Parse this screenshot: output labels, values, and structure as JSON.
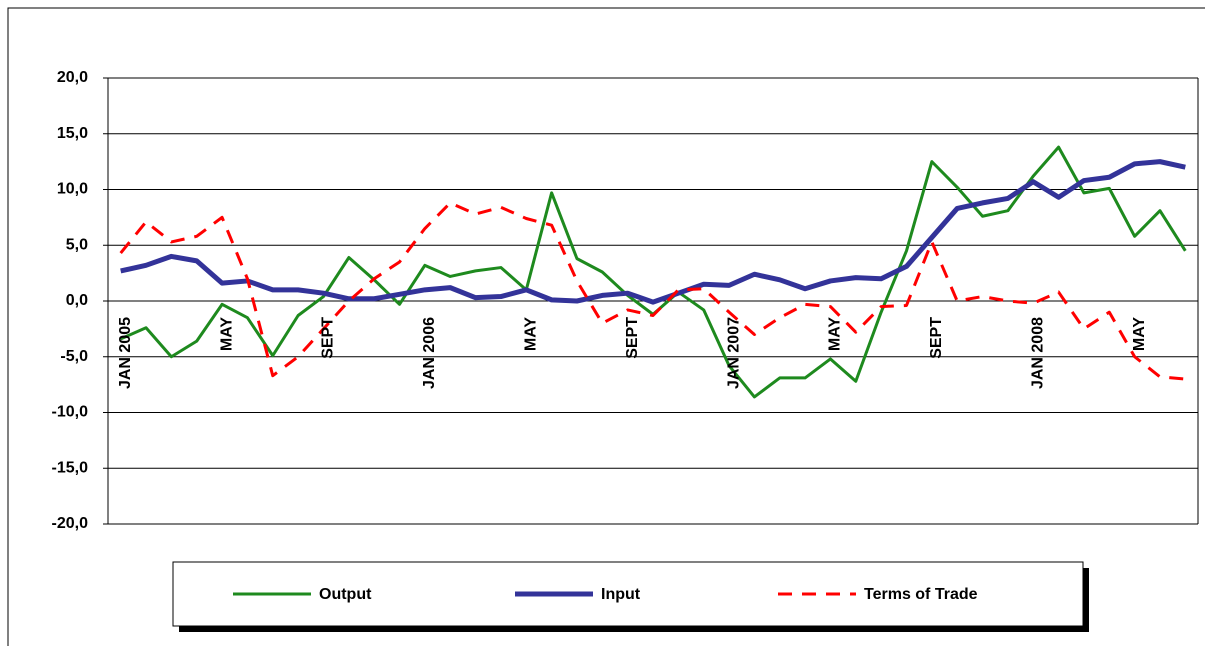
{
  "chart_data": {
    "type": "line",
    "categories": [
      "JAN 2005",
      null,
      null,
      null,
      "MAY",
      null,
      null,
      null,
      "SEPT",
      null,
      null,
      null,
      "JAN 2006",
      null,
      null,
      null,
      "MAY",
      null,
      null,
      null,
      "SEPT",
      null,
      null,
      null,
      "JAN 2007",
      null,
      null,
      null,
      "MAY",
      null,
      null,
      null,
      "SEPT",
      null,
      null,
      null,
      "JAN 2008",
      null,
      null,
      null,
      "MAY",
      null,
      null
    ],
    "series": [
      {
        "name": "Output",
        "color": "#1e8a1e",
        "dash": false,
        "width": 3,
        "values": [
          -3.4,
          -2.4,
          -5.0,
          -3.6,
          -0.3,
          -1.5,
          -4.9,
          -1.3,
          0.4,
          3.9,
          1.9,
          -0.3,
          3.2,
          2.2,
          2.7,
          3.0,
          1.0,
          9.7,
          3.8,
          2.6,
          0.5,
          -1.2,
          0.8,
          -0.8,
          -5.8,
          -8.6,
          -6.9,
          -6.9,
          -5.2,
          -7.2,
          -1.0,
          4.5,
          12.5,
          10.2,
          7.6,
          8.1,
          11.2,
          13.8,
          9.7,
          10.1,
          5.8,
          8.1,
          4.5
        ]
      },
      {
        "name": "Input",
        "color": "#333399",
        "dash": false,
        "width": 5,
        "values": [
          2.7,
          3.2,
          4.0,
          3.6,
          1.6,
          1.8,
          1.0,
          1.0,
          0.7,
          0.2,
          0.2,
          0.6,
          1.0,
          1.2,
          0.3,
          0.4,
          1.0,
          0.1,
          0.0,
          0.5,
          0.7,
          -0.1,
          0.7,
          1.5,
          1.4,
          2.4,
          1.9,
          1.1,
          1.8,
          2.1,
          2.0,
          3.1,
          5.7,
          8.3,
          8.8,
          9.2,
          10.7,
          9.3,
          10.8,
          11.1,
          12.3,
          12.5,
          12.0
        ]
      },
      {
        "name": "Terms of Trade",
        "color": "#ff0000",
        "dash": true,
        "width": 3,
        "values": [
          4.3,
          7.1,
          5.3,
          5.8,
          7.5,
          2.0,
          -6.7,
          -5.0,
          -2.5,
          0.0,
          2.0,
          3.5,
          6.5,
          8.8,
          7.8,
          8.4,
          7.4,
          6.8,
          1.8,
          -2.0,
          -0.8,
          -1.3,
          1.0,
          1.1,
          -1.0,
          -3.0,
          -1.5,
          -0.3,
          -0.5,
          -2.8,
          -0.5,
          -0.4,
          5.3,
          0.0,
          0.4,
          0.0,
          -0.2,
          0.8,
          -2.5,
          -1.0,
          -5.0,
          -6.8,
          -7.0
        ]
      }
    ],
    "ylim": [
      -20,
      20
    ],
    "yticks": [
      {
        "value": -20,
        "label": "-20,0"
      },
      {
        "value": -15,
        "label": "-15,0"
      },
      {
        "value": -10,
        "label": "-10,0"
      },
      {
        "value": -5,
        "label": "-5,0"
      },
      {
        "value": 0,
        "label": "0,0"
      },
      {
        "value": 5,
        "label": "5,0"
      },
      {
        "value": 10,
        "label": "10,0"
      },
      {
        "value": 15,
        "label": "15,0"
      },
      {
        "value": 20,
        "label": "20,0"
      }
    ],
    "grid": true,
    "legend": "bottom"
  }
}
